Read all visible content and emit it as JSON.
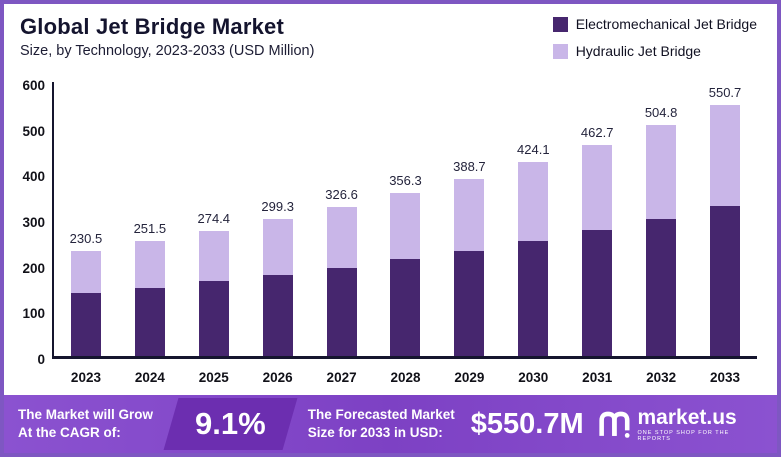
{
  "header": {
    "title": "Global Jet Bridge Market",
    "subtitle": "Size, by Technology, 2023-2033 (USD Million)"
  },
  "legend": [
    {
      "label": "Electromechanical Jet Bridge",
      "color": "#46266e"
    },
    {
      "label": "Hydraulic Jet Bridge",
      "color": "#c9b6e8"
    }
  ],
  "chart_data": {
    "type": "bar",
    "stacked": true,
    "title": "Global Jet Bridge Market",
    "subtitle": "Size, by Technology, 2023-2033 (USD Million)",
    "categories": [
      "2023",
      "2024",
      "2025",
      "2026",
      "2027",
      "2028",
      "2029",
      "2030",
      "2031",
      "2032",
      "2033"
    ],
    "totals": [
      230.5,
      251.5,
      274.4,
      299.3,
      326.6,
      356.3,
      388.7,
      424.1,
      462.7,
      504.8,
      550.7
    ],
    "series": [
      {
        "name": "Electromechanical Jet Bridge",
        "color": "#46266e",
        "values": [
          137.5,
          150.0,
          163.5,
          176.5,
          193.0,
          211.5,
          230.0,
          251.5,
          276.0,
          300.5,
          328.0
        ]
      },
      {
        "name": "Hydraulic Jet Bridge",
        "color": "#c9b6e8",
        "values": [
          93.0,
          101.5,
          110.9,
          122.8,
          133.6,
          144.8,
          158.7,
          172.6,
          186.7,
          204.3,
          222.7
        ]
      }
    ],
    "ylim": [
      0,
      600
    ],
    "yticks": [
      0,
      100,
      200,
      300,
      400,
      500,
      600
    ],
    "grid": false,
    "legend_position": "top-right"
  },
  "footer": {
    "cagr_label_line1": "The Market will Grow",
    "cagr_label_line2": "At the CAGR of:",
    "cagr_value": "9.1%",
    "forecast_label_line1": "The Forecasted Market",
    "forecast_label_line2": "Size for 2033 in USD:",
    "forecast_value": "$550.7M",
    "brand": "market.us",
    "brand_tagline": "ONE STOP SHOP FOR THE REPORTS"
  }
}
